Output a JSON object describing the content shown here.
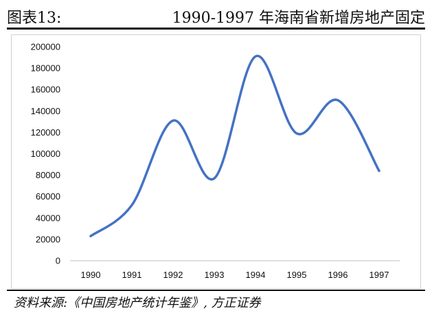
{
  "figure": {
    "label": "图表13:",
    "title": "1990-1997 年海南省新增房地产固定",
    "source": "资料来源:《中国房地产统计年鉴》, 方正证券"
  },
  "chart_data": {
    "type": "line",
    "smooth": true,
    "title": "",
    "xlabel": "",
    "ylabel": "",
    "categories": [
      "1990",
      "1991",
      "1992",
      "1993",
      "1994",
      "1995",
      "1996",
      "1997"
    ],
    "series": [
      {
        "values": [
          23000,
          52000,
          131000,
          77000,
          191000,
          119000,
          150000,
          84000
        ],
        "color": "#4472C4"
      }
    ],
    "ylim": [
      0,
      200000
    ],
    "yticks": [
      0,
      20000,
      40000,
      60000,
      80000,
      100000,
      120000,
      140000,
      160000,
      180000,
      200000
    ],
    "grid": false,
    "legend": "none"
  }
}
